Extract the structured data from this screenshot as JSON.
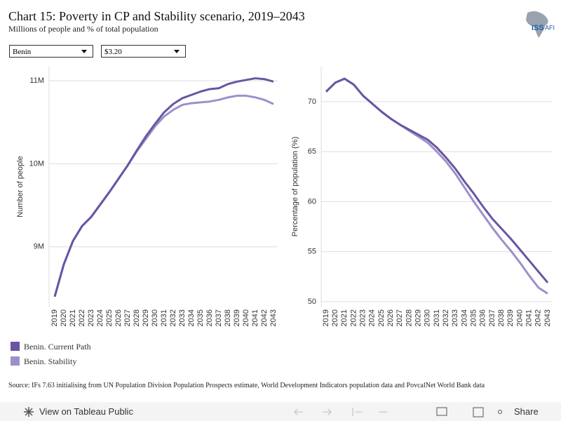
{
  "title": "Chart 15: Poverty in CP and Stability scenario, 2019–2043",
  "subtitle": "Millions of people and % of total population",
  "logo": "ISS",
  "logo_sub": "AFI",
  "filters": [
    "Benin",
    "$3.20"
  ],
  "chart_data": [
    {
      "type": "line",
      "y_label": "Number of people",
      "x": [
        2019,
        2020,
        2021,
        2022,
        2023,
        2024,
        2025,
        2026,
        2027,
        2028,
        2029,
        2030,
        2031,
        2032,
        2033,
        2034,
        2035,
        2036,
        2037,
        2038,
        2039,
        2040,
        2041,
        2042,
        2043
      ],
      "xlim": [
        2019,
        2043
      ],
      "ylim": [
        8.28,
        11.17
      ],
      "yticks": [
        {
          "value": 9,
          "label": "9M"
        },
        {
          "value": 10,
          "label": "10M"
        },
        {
          "value": 11,
          "label": "11M"
        }
      ],
      "grid": true,
      "series": [
        {
          "name": "Benin. Current Path",
          "color": "#6a55a3",
          "values": [
            8.4,
            8.79,
            9.07,
            9.25,
            9.36,
            9.51,
            9.66,
            9.82,
            9.98,
            10.16,
            10.33,
            10.48,
            10.62,
            10.72,
            10.79,
            10.83,
            10.87,
            10.9,
            10.91,
            10.96,
            10.99,
            11.01,
            11.03,
            11.02,
            10.99
          ]
        },
        {
          "name": "Benin. Stability",
          "color": "#9e8fcb",
          "values": [
            8.4,
            8.79,
            9.07,
            9.25,
            9.36,
            9.51,
            9.66,
            9.82,
            9.98,
            10.15,
            10.3,
            10.45,
            10.57,
            10.65,
            10.71,
            10.73,
            10.74,
            10.75,
            10.77,
            10.8,
            10.82,
            10.82,
            10.8,
            10.77,
            10.72
          ]
        }
      ]
    },
    {
      "type": "line",
      "y_label": "Percentage of population (%)",
      "x": [
        2019,
        2020,
        2021,
        2022,
        2023,
        2024,
        2025,
        2026,
        2027,
        2028,
        2029,
        2030,
        2031,
        2032,
        2033,
        2034,
        2035,
        2036,
        2037,
        2038,
        2039,
        2040,
        2041,
        2042,
        2043
      ],
      "xlim": [
        2019,
        2043
      ],
      "ylim": [
        49.5,
        73.5
      ],
      "yticks": [
        50,
        55,
        60,
        65,
        70
      ],
      "grid": true,
      "series": [
        {
          "name": "Benin. Current Path",
          "color": "#6a55a3",
          "values": [
            71.0,
            71.9,
            72.3,
            71.7,
            70.6,
            69.8,
            69.0,
            68.3,
            67.7,
            67.2,
            66.7,
            66.2,
            65.4,
            64.4,
            63.3,
            62.0,
            60.8,
            59.5,
            58.3,
            57.3,
            56.3,
            55.2,
            54.1,
            53.0,
            51.9
          ]
        },
        {
          "name": "Benin. Stability",
          "color": "#9e8fcb",
          "values": [
            71.0,
            71.9,
            72.3,
            71.7,
            70.6,
            69.8,
            69.0,
            68.3,
            67.7,
            67.1,
            66.5,
            65.9,
            65.0,
            64.0,
            62.8,
            61.4,
            60.0,
            58.7,
            57.4,
            56.2,
            55.1,
            53.9,
            52.6,
            51.4,
            50.8
          ]
        }
      ]
    }
  ],
  "source": "Source: IFs 7.63 initialising from UN Population Division Population Prospects estimate, World Development Indicators population data and PovcalNet World Bank data",
  "toolbar": {
    "view": "View on Tableau Public",
    "share": "Share"
  }
}
